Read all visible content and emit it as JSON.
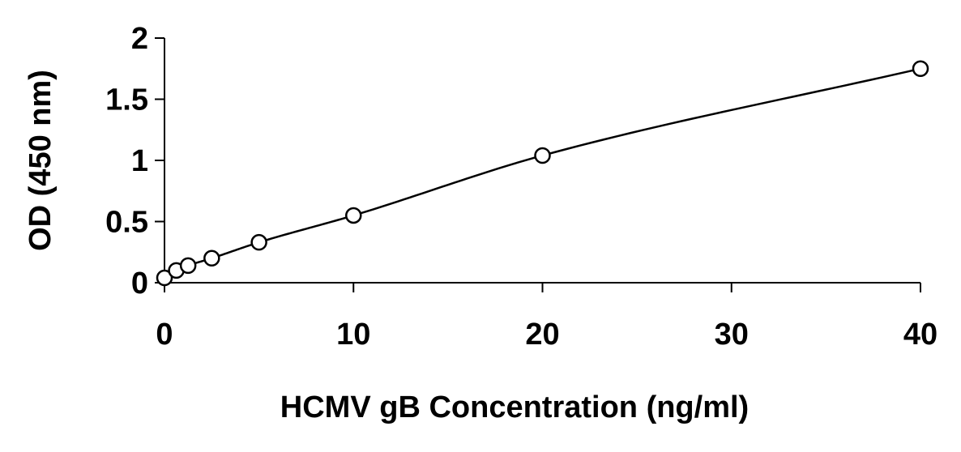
{
  "chart_data": {
    "type": "scatter",
    "title": "",
    "xlabel": "HCMV gB Concentration (ng/ml)",
    "ylabel": "OD (450 nm)",
    "xlim": [
      0,
      40
    ],
    "ylim": [
      0,
      2
    ],
    "xticks": [
      0,
      10,
      20,
      30,
      40
    ],
    "xtick_labels": [
      "0",
      "10",
      "20",
      "30",
      "40"
    ],
    "yticks": [
      0,
      0.5,
      1,
      1.5,
      2
    ],
    "ytick_labels": [
      "0",
      "0.5",
      "1",
      "1.5",
      "2"
    ],
    "grid": false,
    "legend": "none",
    "series": [
      {
        "marker": "open-circle",
        "line": "smooth-fit",
        "x": [
          0,
          0.625,
          1.25,
          2.5,
          5,
          10,
          20,
          40
        ],
        "y": [
          0.04,
          0.1,
          0.14,
          0.2,
          0.33,
          0.55,
          1.04,
          1.75
        ]
      }
    ],
    "colors": {
      "line": "#000000",
      "marker_stroke": "#000000",
      "marker_fill": "#ffffff",
      "axes": "#000000"
    }
  }
}
